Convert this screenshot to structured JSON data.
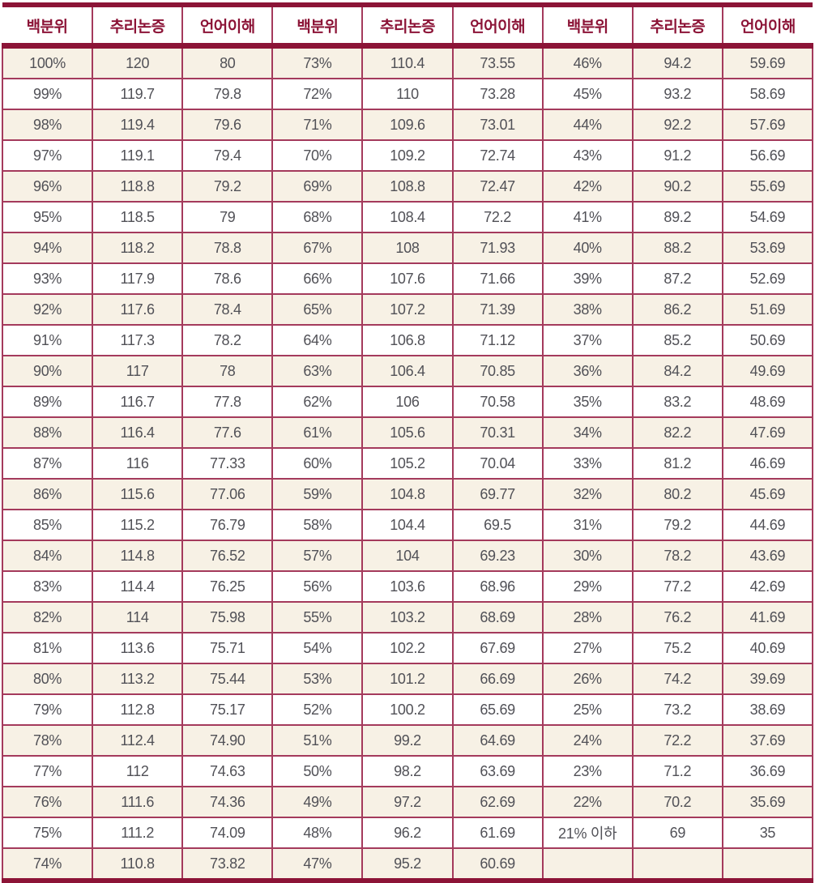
{
  "table": {
    "column_headers": [
      "백분위",
      "추리논증",
      "언어이해",
      "백분위",
      "추리논증",
      "언어이해",
      "백분위",
      "추리논증",
      "언어이해"
    ],
    "rows": [
      [
        "100%",
        "120",
        "80",
        "73%",
        "110.4",
        "73.55",
        "46%",
        "94.2",
        "59.69"
      ],
      [
        "99%",
        "119.7",
        "79.8",
        "72%",
        "110",
        "73.28",
        "45%",
        "93.2",
        "58.69"
      ],
      [
        "98%",
        "119.4",
        "79.6",
        "71%",
        "109.6",
        "73.01",
        "44%",
        "92.2",
        "57.69"
      ],
      [
        "97%",
        "119.1",
        "79.4",
        "70%",
        "109.2",
        "72.74",
        "43%",
        "91.2",
        "56.69"
      ],
      [
        "96%",
        "118.8",
        "79.2",
        "69%",
        "108.8",
        "72.47",
        "42%",
        "90.2",
        "55.69"
      ],
      [
        "95%",
        "118.5",
        "79",
        "68%",
        "108.4",
        "72.2",
        "41%",
        "89.2",
        "54.69"
      ],
      [
        "94%",
        "118.2",
        "78.8",
        "67%",
        "108",
        "71.93",
        "40%",
        "88.2",
        "53.69"
      ],
      [
        "93%",
        "117.9",
        "78.6",
        "66%",
        "107.6",
        "71.66",
        "39%",
        "87.2",
        "52.69"
      ],
      [
        "92%",
        "117.6",
        "78.4",
        "65%",
        "107.2",
        "71.39",
        "38%",
        "86.2",
        "51.69"
      ],
      [
        "91%",
        "117.3",
        "78.2",
        "64%",
        "106.8",
        "71.12",
        "37%",
        "85.2",
        "50.69"
      ],
      [
        "90%",
        "117",
        "78",
        "63%",
        "106.4",
        "70.85",
        "36%",
        "84.2",
        "49.69"
      ],
      [
        "89%",
        "116.7",
        "77.8",
        "62%",
        "106",
        "70.58",
        "35%",
        "83.2",
        "48.69"
      ],
      [
        "88%",
        "116.4",
        "77.6",
        "61%",
        "105.6",
        "70.31",
        "34%",
        "82.2",
        "47.69"
      ],
      [
        "87%",
        "116",
        "77.33",
        "60%",
        "105.2",
        "70.04",
        "33%",
        "81.2",
        "46.69"
      ],
      [
        "86%",
        "115.6",
        "77.06",
        "59%",
        "104.8",
        "69.77",
        "32%",
        "80.2",
        "45.69"
      ],
      [
        "85%",
        "115.2",
        "76.79",
        "58%",
        "104.4",
        "69.5",
        "31%",
        "79.2",
        "44.69"
      ],
      [
        "84%",
        "114.8",
        "76.52",
        "57%",
        "104",
        "69.23",
        "30%",
        "78.2",
        "43.69"
      ],
      [
        "83%",
        "114.4",
        "76.25",
        "56%",
        "103.6",
        "68.96",
        "29%",
        "77.2",
        "42.69"
      ],
      [
        "82%",
        "114",
        "75.98",
        "55%",
        "103.2",
        "68.69",
        "28%",
        "76.2",
        "41.69"
      ],
      [
        "81%",
        "113.6",
        "75.71",
        "54%",
        "102.2",
        "67.69",
        "27%",
        "75.2",
        "40.69"
      ],
      [
        "80%",
        "113.2",
        "75.44",
        "53%",
        "101.2",
        "66.69",
        "26%",
        "74.2",
        "39.69"
      ],
      [
        "79%",
        "112.8",
        "75.17",
        "52%",
        "100.2",
        "65.69",
        "25%",
        "73.2",
        "38.69"
      ],
      [
        "78%",
        "112.4",
        "74.90",
        "51%",
        "99.2",
        "64.69",
        "24%",
        "72.2",
        "37.69"
      ],
      [
        "77%",
        "112",
        "74.63",
        "50%",
        "98.2",
        "63.69",
        "23%",
        "71.2",
        "36.69"
      ],
      [
        "76%",
        "111.6",
        "74.36",
        "49%",
        "97.2",
        "62.69",
        "22%",
        "70.2",
        "35.69"
      ],
      [
        "75%",
        "111.2",
        "74.09",
        "48%",
        "96.2",
        "61.69",
        "21% 이하",
        "69",
        "35"
      ],
      [
        "74%",
        "110.8",
        "73.82",
        "47%",
        "95.2",
        "60.69",
        "",
        "",
        ""
      ]
    ]
  },
  "colors": {
    "accent_dark": "#8c1437",
    "grid_line": "#a43a5c",
    "row_alt_bg": "#f7f1e5",
    "text": "#515157"
  }
}
